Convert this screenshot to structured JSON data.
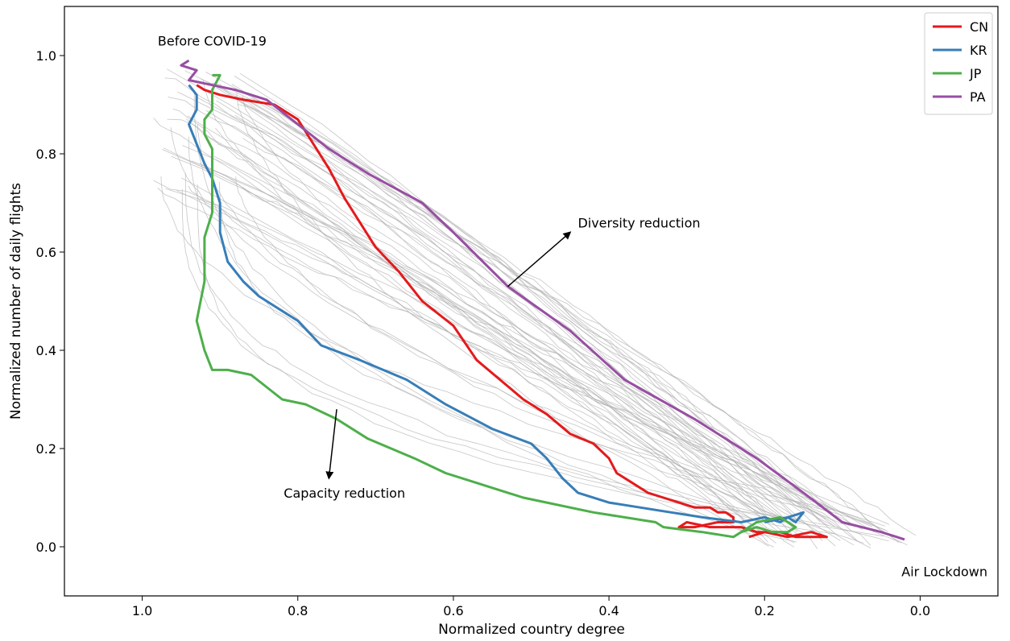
{
  "chart_data": {
    "type": "line",
    "xlabel": "Normalized country degree",
    "ylabel": "Normalized number of daily flights",
    "x_axis_inverted": true,
    "xlim": [
      1.1,
      -0.1
    ],
    "ylim": [
      -0.1,
      1.1
    ],
    "xticks": [
      {
        "value": 1.0,
        "label": "1.0"
      },
      {
        "value": 0.8,
        "label": "0.8"
      },
      {
        "value": 0.6,
        "label": "0.6"
      },
      {
        "value": 0.4,
        "label": "0.4"
      },
      {
        "value": 0.2,
        "label": "0.2"
      },
      {
        "value": 0.0,
        "label": "0.0"
      }
    ],
    "yticks": [
      {
        "value": 0.0,
        "label": "0.0"
      },
      {
        "value": 0.2,
        "label": "0.2"
      },
      {
        "value": 0.4,
        "label": "0.4"
      },
      {
        "value": 0.6,
        "label": "0.6"
      },
      {
        "value": 0.8,
        "label": "0.8"
      },
      {
        "value": 1.0,
        "label": "1.0"
      }
    ],
    "grid": false,
    "legend_position": "top-right",
    "series": [
      {
        "name": "CN",
        "color": "#e41a1c",
        "x": [
          0.93,
          0.92,
          0.9,
          0.87,
          0.83,
          0.8,
          0.78,
          0.76,
          0.74,
          0.72,
          0.7,
          0.67,
          0.64,
          0.6,
          0.57,
          0.54,
          0.51,
          0.48,
          0.45,
          0.42,
          0.4,
          0.39,
          0.37,
          0.35,
          0.33,
          0.31,
          0.29,
          0.27,
          0.26,
          0.25,
          0.24,
          0.24,
          0.26,
          0.29,
          0.31,
          0.3,
          0.27,
          0.25,
          0.23,
          0.21,
          0.18,
          0.16,
          0.14,
          0.12,
          0.14,
          0.17,
          0.2,
          0.22
        ],
        "y": [
          0.94,
          0.93,
          0.92,
          0.91,
          0.9,
          0.87,
          0.82,
          0.77,
          0.71,
          0.66,
          0.61,
          0.56,
          0.5,
          0.45,
          0.38,
          0.34,
          0.3,
          0.27,
          0.23,
          0.21,
          0.18,
          0.15,
          0.13,
          0.11,
          0.1,
          0.09,
          0.08,
          0.08,
          0.07,
          0.07,
          0.06,
          0.05,
          0.05,
          0.04,
          0.04,
          0.05,
          0.04,
          0.04,
          0.04,
          0.03,
          0.03,
          0.02,
          0.02,
          0.02,
          0.03,
          0.02,
          0.03,
          0.02
        ]
      },
      {
        "name": "KR",
        "color": "#377eb8",
        "x": [
          0.94,
          0.93,
          0.93,
          0.94,
          0.93,
          0.92,
          0.91,
          0.9,
          0.9,
          0.89,
          0.87,
          0.85,
          0.82,
          0.8,
          0.77,
          0.72,
          0.66,
          0.61,
          0.55,
          0.5,
          0.48,
          0.46,
          0.44,
          0.4,
          0.36,
          0.32,
          0.28,
          0.23,
          0.2,
          0.18,
          0.17,
          0.16,
          0.15,
          0.17,
          0.2
        ],
        "y": [
          0.94,
          0.92,
          0.89,
          0.86,
          0.82,
          0.78,
          0.75,
          0.7,
          0.64,
          0.58,
          0.54,
          0.51,
          0.48,
          0.46,
          0.41,
          0.38,
          0.34,
          0.29,
          0.24,
          0.21,
          0.18,
          0.14,
          0.11,
          0.09,
          0.08,
          0.07,
          0.06,
          0.05,
          0.06,
          0.05,
          0.06,
          0.05,
          0.07,
          0.06,
          0.05
        ]
      },
      {
        "name": "JP",
        "color": "#4daf4a",
        "x": [
          0.91,
          0.9,
          0.91,
          0.91,
          0.92,
          0.92,
          0.91,
          0.91,
          0.91,
          0.92,
          0.92,
          0.92,
          0.93,
          0.92,
          0.91,
          0.89,
          0.86,
          0.82,
          0.79,
          0.75,
          0.71,
          0.65,
          0.61,
          0.57,
          0.51,
          0.42,
          0.34,
          0.33,
          0.28,
          0.24,
          0.23,
          0.21,
          0.19,
          0.17,
          0.16,
          0.18,
          0.21,
          0.24
        ],
        "y": [
          0.96,
          0.96,
          0.93,
          0.89,
          0.87,
          0.84,
          0.81,
          0.75,
          0.68,
          0.63,
          0.58,
          0.54,
          0.46,
          0.4,
          0.36,
          0.36,
          0.35,
          0.3,
          0.29,
          0.26,
          0.22,
          0.18,
          0.15,
          0.13,
          0.1,
          0.07,
          0.05,
          0.04,
          0.03,
          0.02,
          0.03,
          0.04,
          0.03,
          0.03,
          0.04,
          0.06,
          0.05,
          0.02
        ]
      },
      {
        "name": "PA",
        "color": "#984ea3",
        "x": [
          0.94,
          0.95,
          0.93,
          0.94,
          0.91,
          0.88,
          0.84,
          0.8,
          0.76,
          0.71,
          0.64,
          0.6,
          0.53,
          0.45,
          0.38,
          0.29,
          0.21,
          0.15,
          0.1,
          0.05,
          0.03,
          0.02
        ],
        "y": [
          0.99,
          0.98,
          0.97,
          0.95,
          0.94,
          0.93,
          0.91,
          0.86,
          0.81,
          0.76,
          0.7,
          0.64,
          0.53,
          0.44,
          0.34,
          0.26,
          0.18,
          0.11,
          0.05,
          0.03,
          0.02,
          0.015
        ]
      }
    ],
    "background_series_color": "#b3b3b3",
    "annotations": [
      {
        "text": "Before COVID-19",
        "x": 0.98,
        "y": 1.03
      },
      {
        "text": "Air Lockdown",
        "x": 0.06,
        "y": -0.05
      },
      {
        "text": "Diversity reduction",
        "x": 0.44,
        "y": 0.66,
        "arrow_from": [
          0.53,
          0.53
        ],
        "arrow_to": [
          0.45,
          0.64
        ]
      },
      {
        "text": "Capacity reduction",
        "x": 0.74,
        "y": 0.11,
        "arrow_from": [
          0.75,
          0.28
        ],
        "arrow_to": [
          0.76,
          0.14
        ]
      }
    ]
  }
}
